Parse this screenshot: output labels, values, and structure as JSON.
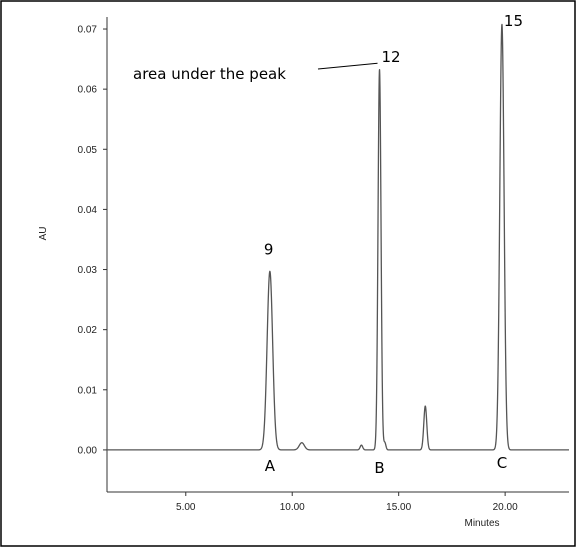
{
  "chart_data": {
    "type": "line",
    "title": "",
    "xlabel": "Minutes",
    "ylabel": "AU",
    "xlim": [
      1.3,
      23.0
    ],
    "ylim": [
      -0.007,
      0.072
    ],
    "x_ticks": [
      5.0,
      10.0,
      15.0,
      20.0
    ],
    "x_tick_labels": [
      "5.00",
      "10.00",
      "15.00",
      "20.00"
    ],
    "y_ticks": [
      0.0,
      0.01,
      0.02,
      0.03,
      0.04,
      0.05,
      0.06,
      0.07
    ],
    "y_tick_labels": [
      "0.00",
      "0.01",
      "0.02",
      "0.03",
      "0.04",
      "0.05",
      "0.06",
      "0.07"
    ],
    "grid": false,
    "series_color": "#555555",
    "baseline": 0.0,
    "peaks": [
      {
        "x": 8.95,
        "height": 0.0297,
        "width": 0.13
      },
      {
        "x": 10.45,
        "height": 0.0012,
        "width": 0.12
      },
      {
        "x": 13.25,
        "height": 0.0008,
        "width": 0.06
      },
      {
        "x": 14.1,
        "height": 0.0633,
        "width": 0.07
      },
      {
        "x": 14.35,
        "height": 0.0012,
        "width": 0.05
      },
      {
        "x": 16.25,
        "height": 0.0073,
        "width": 0.07
      },
      {
        "x": 19.85,
        "height": 0.0708,
        "width": 0.1
      }
    ],
    "annotations": [
      {
        "text": "9",
        "x": 8.95,
        "y": 0.0325
      },
      {
        "text": "12",
        "x": 14.1,
        "y": 0.0645
      },
      {
        "text": "15",
        "x": 19.85,
        "y": 0.0705
      },
      {
        "text": "A",
        "x": 8.95,
        "y": -0.0035
      },
      {
        "text": "B",
        "x": 14.1,
        "y": -0.0038
      },
      {
        "text": "C",
        "x": 19.85,
        "y": -0.003
      }
    ],
    "callout": {
      "text": "area under the peak",
      "target_x": 14.1,
      "target_y": 0.0638
    }
  }
}
